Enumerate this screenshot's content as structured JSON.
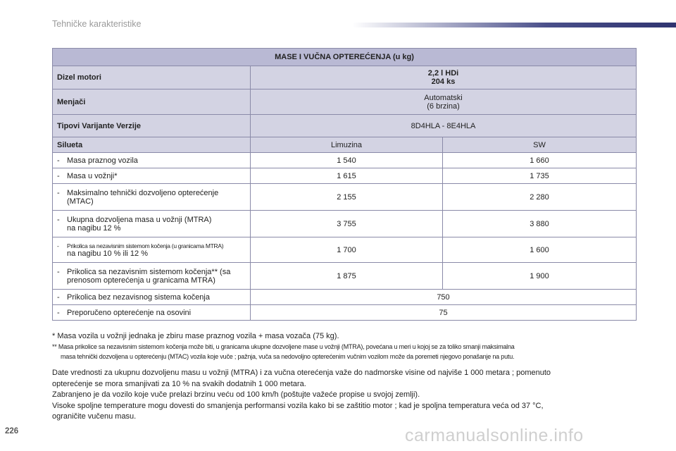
{
  "header": {
    "title": "Tehničke karakteristike"
  },
  "table": {
    "title": "MASE I VUČNA OPTEREĆENJA (u kg)",
    "engine_label": "Dizel motori",
    "engine_line1": "2,2 l HDi",
    "engine_line2": "204 ks",
    "gearbox_label": "Menjači",
    "gearbox_line1": "Automatski",
    "gearbox_line2": "(6 brzina)",
    "types_label": "Tipovi Varijante Verzije",
    "types_value": "8D4HLA - 8E4HLA",
    "body_label": "Silueta",
    "body_col1": "Limuzina",
    "body_col2": "SW",
    "rows": [
      {
        "dash": "-",
        "l1": "Masa praznog vozila",
        "l2": "",
        "v1": "1 540",
        "v2": "1 660"
      },
      {
        "dash": "-",
        "l1": "Masa u vožnji*",
        "l2": "",
        "v1": "1 615",
        "v2": "1 735"
      },
      {
        "dash": "-",
        "l1": "Maksimalno tehnički dozvoljeno opterećenje",
        "l2": "(MTAC)",
        "v1": "2 155",
        "v2": "2 280"
      },
      {
        "dash": "-",
        "l1": "Ukupna dozvoljena masa u vožnji (MTRA)",
        "l2": "na nagibu 12 %",
        "v1": "3 755",
        "v2": "3 880"
      },
      {
        "dash": "-",
        "l1": "Prikolica sa nezavisnim sistemom kočenja (u granicama MTRA)",
        "l2": "na nagibu 10 % ili 12 %",
        "v1": "1 700",
        "v2": "1 600"
      },
      {
        "dash": "-",
        "l1": "Prikolica sa nezavisnim sistemom kočenja** (sa",
        "l2": "prenosom opterećenja u granicama MTRA)",
        "v1": "1 875",
        "v2": "1 900"
      },
      {
        "dash": "-",
        "l1": "Prikolica bez nezavisnog sistema kočenja",
        "l2": "",
        "v": "750"
      },
      {
        "dash": "-",
        "l1": "Preporučeno opterećenje na osovini",
        "l2": "",
        "v": "75"
      }
    ]
  },
  "notes": {
    "n1": "* Masa vozila u vožnji jednaka je zbiru mase praznog vozila + masa vozača (75 kg).",
    "n2_line1": "** Masa prikolice sa nezavisnim sistemom kočenja može biti, u granicama ukupne dozvoljene mase u vožnji (MTRA), povećana u meri u kojoj se za toliko smanji maksimalna",
    "n2_line2": "masa tehnički dozvoljena u opterećenju (MTAC) vozila koje vuče ; pažnja, vuča sa nedovoljno opterećenim vučnim vozilom može da poremeti njegovo ponašanje na putu."
  },
  "paragraph": {
    "line1": "Date vrednosti za ukupnu dozvoljenu masu u vožnji (MTRA) i za vučna oterećenja važe do nadmorske visine od najviše 1 000 metara ; pomenuto",
    "line2": "opterećenje se mora smanjivati za 10 % na svakih dodatnih 1 000 metara.",
    "line3": "Zabranjeno je da vozilo koje vuče prelazi brzinu veću od 100 km/h (poštujte važeće propise u svojoj zemlji).",
    "line4": "Visoke spoljne temperature mogu dovesti do smanjenja performansi vozila kako bi se zaštitio motor ; kad je spoljna temperatura veća od 37 °C,",
    "line5": "ograničite vučenu masu."
  },
  "page_number": "226",
  "watermark": "carmanualsonline.info"
}
